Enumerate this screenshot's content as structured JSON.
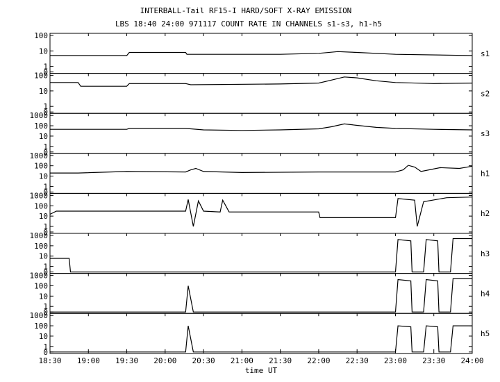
{
  "chart_data": {
    "type": "line",
    "title": "INTERBALL-Tail RF15-I HARD/SOFT X-RAY EMISSION",
    "subtitle": "LBS 18:40 24:00 971117  COUNT RATE IN CHANNELS s1-s3, h1-h5",
    "xlabel": "time UT",
    "x_ticks": [
      "18:30",
      "19:00",
      "19:30",
      "20:00",
      "20:30",
      "21:00",
      "21:30",
      "22:00",
      "22:30",
      "23:00",
      "23:30",
      "24:00"
    ],
    "xlim": [
      "18:30",
      "24:00"
    ],
    "grid": false,
    "panels": [
      {
        "name": "s1",
        "y_ticks": [
          "100",
          "10",
          "1",
          "0"
        ],
        "series": [
          {
            "time": "18:30",
            "value": 5
          },
          {
            "time": "18:52",
            "value": 5
          },
          {
            "time": "19:30",
            "value": 5
          },
          {
            "time": "19:32",
            "value": 8
          },
          {
            "time": "20:16",
            "value": 8
          },
          {
            "time": "20:17",
            "value": 6
          },
          {
            "time": "21:30",
            "value": 6
          },
          {
            "time": "22:00",
            "value": 7
          },
          {
            "time": "22:15",
            "value": 9
          },
          {
            "time": "22:30",
            "value": 8
          },
          {
            "time": "23:00",
            "value": 6
          },
          {
            "time": "24:00",
            "value": 5
          }
        ]
      },
      {
        "name": "s2",
        "y_ticks": [
          "100",
          "10",
          "1",
          "0"
        ],
        "series": [
          {
            "time": "18:30",
            "value": 35
          },
          {
            "time": "18:52",
            "value": 35
          },
          {
            "time": "18:54",
            "value": 20
          },
          {
            "time": "19:30",
            "value": 20
          },
          {
            "time": "19:32",
            "value": 30
          },
          {
            "time": "20:16",
            "value": 30
          },
          {
            "time": "20:20",
            "value": 25
          },
          {
            "time": "21:30",
            "value": 28
          },
          {
            "time": "22:00",
            "value": 32
          },
          {
            "time": "22:10",
            "value": 50
          },
          {
            "time": "22:20",
            "value": 80
          },
          {
            "time": "22:30",
            "value": 70
          },
          {
            "time": "22:45",
            "value": 45
          },
          {
            "time": "23:00",
            "value": 35
          },
          {
            "time": "23:30",
            "value": 30
          },
          {
            "time": "24:00",
            "value": 32
          }
        ]
      },
      {
        "name": "s3",
        "y_ticks": [
          "1000",
          "100",
          "10",
          "1",
          "0"
        ],
        "series": [
          {
            "time": "18:30",
            "value": 45
          },
          {
            "time": "19:30",
            "value": 45
          },
          {
            "time": "19:32",
            "value": 55
          },
          {
            "time": "20:16",
            "value": 55
          },
          {
            "time": "20:30",
            "value": 40
          },
          {
            "time": "21:00",
            "value": 35
          },
          {
            "time": "21:30",
            "value": 40
          },
          {
            "time": "22:00",
            "value": 50
          },
          {
            "time": "22:10",
            "value": 80
          },
          {
            "time": "22:20",
            "value": 150
          },
          {
            "time": "22:30",
            "value": 110
          },
          {
            "time": "22:45",
            "value": 70
          },
          {
            "time": "23:00",
            "value": 55
          },
          {
            "time": "23:30",
            "value": 45
          },
          {
            "time": "24:00",
            "value": 40
          }
        ]
      },
      {
        "name": "h1",
        "y_ticks": [
          "1000",
          "100",
          "10",
          "1",
          "0"
        ],
        "series": [
          {
            "time": "18:30",
            "value": 20
          },
          {
            "time": "18:52",
            "value": 20
          },
          {
            "time": "19:30",
            "value": 28
          },
          {
            "time": "20:16",
            "value": 25
          },
          {
            "time": "20:20",
            "value": 40
          },
          {
            "time": "20:24",
            "value": 55
          },
          {
            "time": "20:30",
            "value": 28
          },
          {
            "time": "21:00",
            "value": 22
          },
          {
            "time": "22:00",
            "value": 25
          },
          {
            "time": "23:00",
            "value": 25
          },
          {
            "time": "23:06",
            "value": 40
          },
          {
            "time": "23:10",
            "value": 110
          },
          {
            "time": "23:15",
            "value": 75
          },
          {
            "time": "23:20",
            "value": 28
          },
          {
            "time": "23:35",
            "value": 65
          },
          {
            "time": "23:50",
            "value": 55
          },
          {
            "time": "24:00",
            "value": 90
          }
        ]
      },
      {
        "name": "h2",
        "y_ticks": [
          "1000",
          "100",
          "10",
          "1",
          "0"
        ],
        "series": [
          {
            "time": "18:30",
            "value": 15
          },
          {
            "time": "18:35",
            "value": 30
          },
          {
            "time": "20:16",
            "value": 30
          },
          {
            "time": "20:18",
            "value": 400
          },
          {
            "time": "20:22",
            "value": 1
          },
          {
            "time": "20:26",
            "value": 300
          },
          {
            "time": "20:30",
            "value": 30
          },
          {
            "time": "20:43",
            "value": 25
          },
          {
            "time": "20:45",
            "value": 350
          },
          {
            "time": "20:50",
            "value": 25
          },
          {
            "time": "22:00",
            "value": 25
          },
          {
            "time": "22:01",
            "value": 7
          },
          {
            "time": "23:00",
            "value": 7
          },
          {
            "time": "23:02",
            "value": 500
          },
          {
            "time": "23:15",
            "value": 350
          },
          {
            "time": "23:17",
            "value": 1
          },
          {
            "time": "23:22",
            "value": 250
          },
          {
            "time": "23:40",
            "value": 600
          },
          {
            "time": "24:00",
            "value": 700
          }
        ]
      },
      {
        "name": "h3",
        "y_ticks": [
          "1000",
          "100",
          "10",
          "1",
          "0"
        ],
        "series": [
          {
            "time": "18:30",
            "value": 6
          },
          {
            "time": "18:45",
            "value": 6
          },
          {
            "time": "18:46",
            "value": 0
          },
          {
            "time": "23:00",
            "value": 0
          },
          {
            "time": "23:02",
            "value": 400
          },
          {
            "time": "23:12",
            "value": 300
          },
          {
            "time": "23:13",
            "value": 0
          },
          {
            "time": "23:22",
            "value": 0
          },
          {
            "time": "23:24",
            "value": 400
          },
          {
            "time": "23:33",
            "value": 300
          },
          {
            "time": "23:34",
            "value": 0
          },
          {
            "time": "23:43",
            "value": 0
          },
          {
            "time": "23:45",
            "value": 500
          },
          {
            "time": "24:00",
            "value": 500
          }
        ]
      },
      {
        "name": "h4",
        "y_ticks": [
          "1000",
          "100",
          "10",
          "1",
          "0"
        ],
        "series": [
          {
            "time": "18:30",
            "value": 0
          },
          {
            "time": "20:16",
            "value": 0
          },
          {
            "time": "20:18",
            "value": 100
          },
          {
            "time": "20:22",
            "value": 0
          },
          {
            "time": "23:00",
            "value": 0
          },
          {
            "time": "23:02",
            "value": 400
          },
          {
            "time": "23:12",
            "value": 300
          },
          {
            "time": "23:13",
            "value": 0
          },
          {
            "time": "23:22",
            "value": 0
          },
          {
            "time": "23:24",
            "value": 400
          },
          {
            "time": "23:33",
            "value": 300
          },
          {
            "time": "23:34",
            "value": 0
          },
          {
            "time": "23:43",
            "value": 0
          },
          {
            "time": "23:45",
            "value": 500
          },
          {
            "time": "24:00",
            "value": 500
          }
        ]
      },
      {
        "name": "h5",
        "y_ticks": [
          "1000",
          "100",
          "10",
          "1",
          "0"
        ],
        "series": [
          {
            "time": "18:30",
            "value": 0
          },
          {
            "time": "20:16",
            "value": 0
          },
          {
            "time": "20:18",
            "value": 100
          },
          {
            "time": "20:22",
            "value": 0
          },
          {
            "time": "23:00",
            "value": 0
          },
          {
            "time": "23:02",
            "value": 100
          },
          {
            "time": "23:12",
            "value": 80
          },
          {
            "time": "23:13",
            "value": 0
          },
          {
            "time": "23:22",
            "value": 0
          },
          {
            "time": "23:24",
            "value": 100
          },
          {
            "time": "23:33",
            "value": 80
          },
          {
            "time": "23:34",
            "value": 0
          },
          {
            "time": "23:43",
            "value": 0
          },
          {
            "time": "23:45",
            "value": 100
          },
          {
            "time": "24:00",
            "value": 100
          }
        ]
      }
    ]
  }
}
